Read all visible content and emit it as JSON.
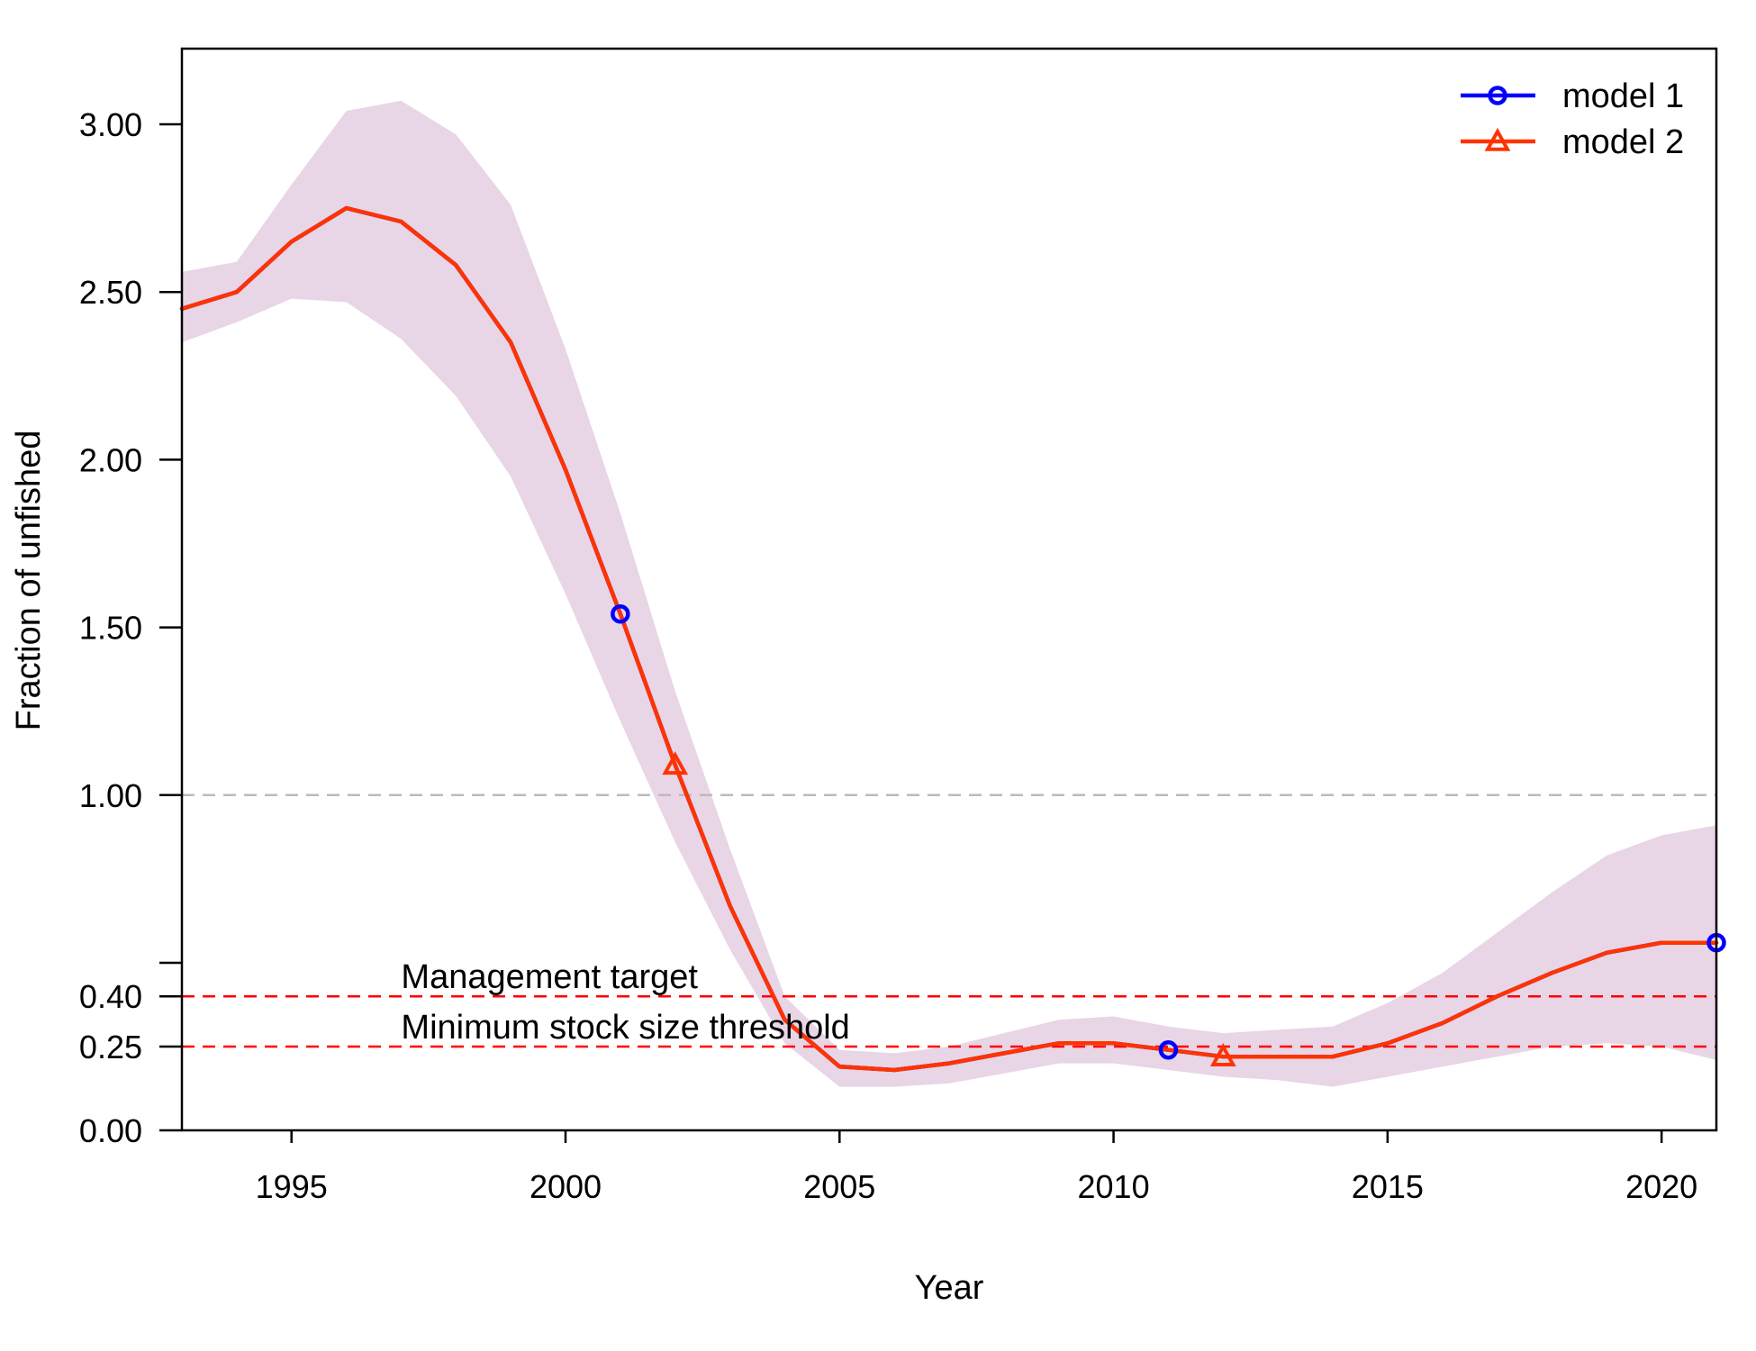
{
  "chart_data": {
    "type": "line",
    "xlabel": "Year",
    "ylabel": "Fraction of unfished",
    "xlim": [
      1993,
      2021
    ],
    "ylim": [
      0,
      3.2
    ],
    "y_scale": "piecewise linear: 0.00, 0.25 and 0.40 spaced evenly up to 0.5; linear above",
    "x_ticks": [
      "1995",
      "2000",
      "2005",
      "2010",
      "2015",
      "2020"
    ],
    "y_ticks": [
      "0.00",
      "0.25",
      "0.40",
      "1.00",
      "1.50",
      "2.00",
      "2.50",
      "3.00"
    ],
    "y_tick_extra_unlabeled": [
      0.5
    ],
    "grid": false,
    "legend_position": "top-right",
    "x": [
      1993,
      1994,
      1995,
      1996,
      1997,
      1998,
      1999,
      2000,
      2001,
      2002,
      2003,
      2004,
      2005,
      2006,
      2007,
      2008,
      2009,
      2010,
      2011,
      2012,
      2013,
      2014,
      2015,
      2016,
      2017,
      2018,
      2019,
      2020,
      2021
    ],
    "series": [
      {
        "name": "model 1",
        "color": "#0000ff",
        "marker": "circle",
        "marker_x": [
          2001,
          2011,
          2021
        ],
        "values": [
          2.45,
          2.5,
          2.65,
          2.75,
          2.71,
          2.58,
          2.35,
          1.97,
          1.54,
          1.09,
          0.67,
          0.33,
          0.19,
          0.18,
          0.2,
          0.23,
          0.26,
          0.26,
          0.24,
          0.22,
          0.22,
          0.22,
          0.26,
          0.32,
          0.4,
          0.47,
          0.53,
          0.56,
          0.56
        ]
      },
      {
        "name": "model 2",
        "color": "#ff3300",
        "marker": "triangle",
        "marker_x": [
          2002,
          2012
        ],
        "values": [
          2.45,
          2.5,
          2.65,
          2.75,
          2.71,
          2.58,
          2.35,
          1.97,
          1.54,
          1.09,
          0.67,
          0.33,
          0.19,
          0.18,
          0.2,
          0.23,
          0.26,
          0.26,
          0.24,
          0.22,
          0.22,
          0.22,
          0.26,
          0.32,
          0.4,
          0.47,
          0.53,
          0.56,
          0.56
        ]
      }
    ],
    "uncertainty_band": {
      "color": "#e8d5e6",
      "lower": [
        2.35,
        2.41,
        2.48,
        2.47,
        2.36,
        2.19,
        1.95,
        1.6,
        1.22,
        0.86,
        0.54,
        0.26,
        0.13,
        0.13,
        0.14,
        0.17,
        0.2,
        0.2,
        0.18,
        0.16,
        0.15,
        0.13,
        0.16,
        0.19,
        0.22,
        0.25,
        0.26,
        0.25,
        0.21
      ],
      "upper": [
        2.56,
        2.59,
        2.82,
        3.04,
        3.07,
        2.97,
        2.76,
        2.33,
        1.84,
        1.31,
        0.84,
        0.4,
        0.24,
        0.23,
        0.25,
        0.29,
        0.33,
        0.34,
        0.31,
        0.29,
        0.3,
        0.31,
        0.38,
        0.47,
        0.59,
        0.71,
        0.82,
        0.88,
        0.91
      ]
    },
    "reference_lines": [
      {
        "y": 1.0,
        "color": "#bbbbbb",
        "style": "dashed",
        "label": ""
      },
      {
        "y": 0.4,
        "color": "#ff0000",
        "style": "dashed",
        "label": "Management target"
      },
      {
        "y": 0.25,
        "color": "#ff0000",
        "style": "dashed",
        "label": "Minimum stock size threshold"
      }
    ]
  }
}
